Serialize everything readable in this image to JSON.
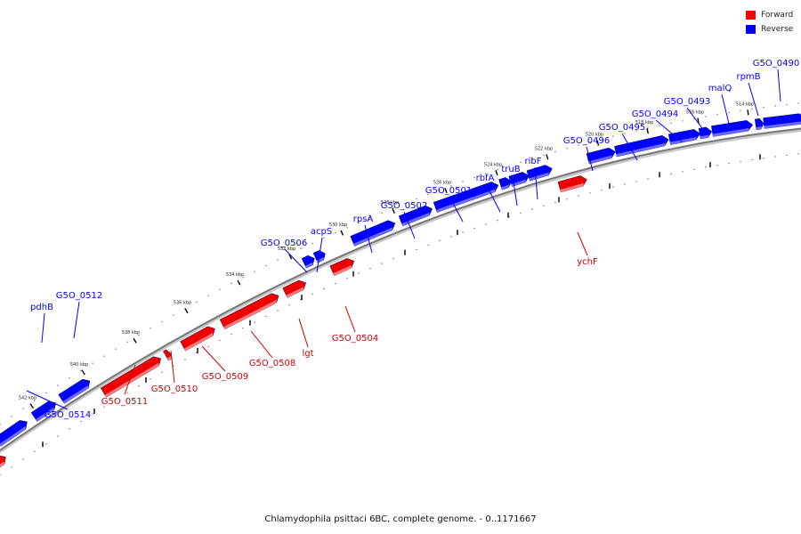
{
  "legend": {
    "forward_label": "Forward",
    "reverse_label": "Reverse",
    "forward_color": "#ff0000",
    "reverse_color": "#0000ff"
  },
  "footer": "Chlamydophila psittaci 6BC, complete genome. - 0..1171667",
  "ticks": [
    "542 kbp",
    "540 kbp",
    "538 kbp",
    "536 kbp",
    "534 kbp",
    "532 kbp",
    "530 kbp",
    "528 kbp",
    "526 kbp",
    "524 kbp",
    "522 kbp",
    "520 kbp",
    "518 kbp",
    "516 kbp",
    "514 kbp"
  ],
  "reverse_genes": [
    "G5O_0514",
    "pdhB",
    "G5O_0512",
    "G5O_0506",
    "acpS",
    "rpsA",
    "G5O_0502",
    "G5O_0501",
    "rbfA",
    "truB",
    "ribF",
    "G5O_0496",
    "G5O_0495",
    "G5O_0494",
    "G5O_0493",
    "malQ",
    "rpmB",
    "G5O_0490"
  ],
  "forward_genes": [
    "G5O_0511",
    "G5O_0510",
    "G5O_0509",
    "G5O_0508",
    "lgt",
    "G5O_0504",
    "ychF"
  ]
}
